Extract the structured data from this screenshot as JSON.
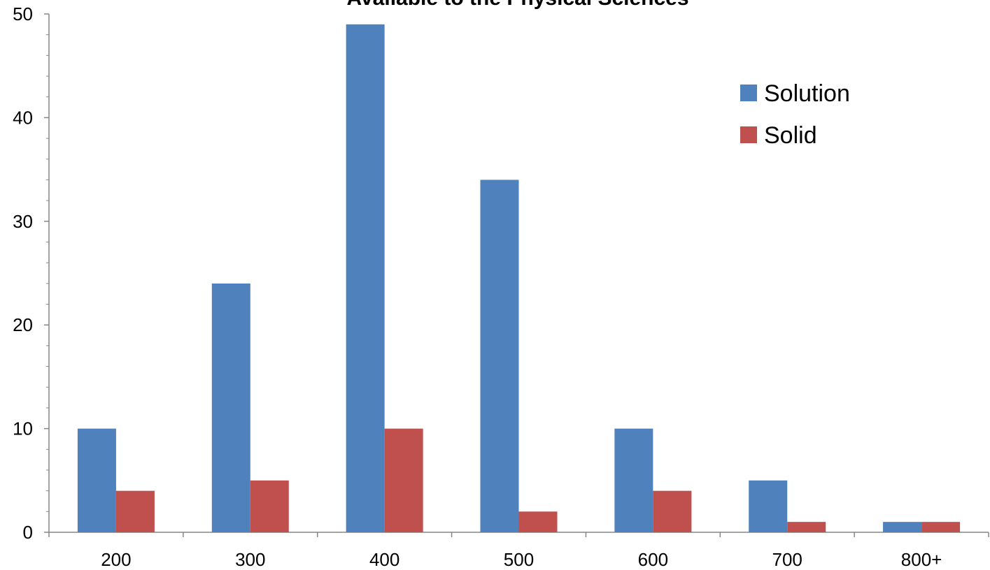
{
  "chart_data": {
    "type": "bar",
    "title": "Available to the Physical Sciences",
    "xlabel": "",
    "ylabel": "",
    "categories": [
      "200",
      "300",
      "400",
      "500",
      "600",
      "700",
      "800+"
    ],
    "series": [
      {
        "name": "Solution",
        "color": "#4F81BD",
        "values": [
          10,
          24,
          49,
          34,
          10,
          5,
          1
        ]
      },
      {
        "name": "Solid",
        "color": "#C0504D",
        "values": [
          4,
          5,
          10,
          2,
          4,
          1,
          1
        ]
      }
    ],
    "ylim": [
      0,
      50
    ],
    "yticks": [
      0,
      10,
      20,
      30,
      40,
      50
    ],
    "grid": false,
    "legend": "top-right"
  }
}
